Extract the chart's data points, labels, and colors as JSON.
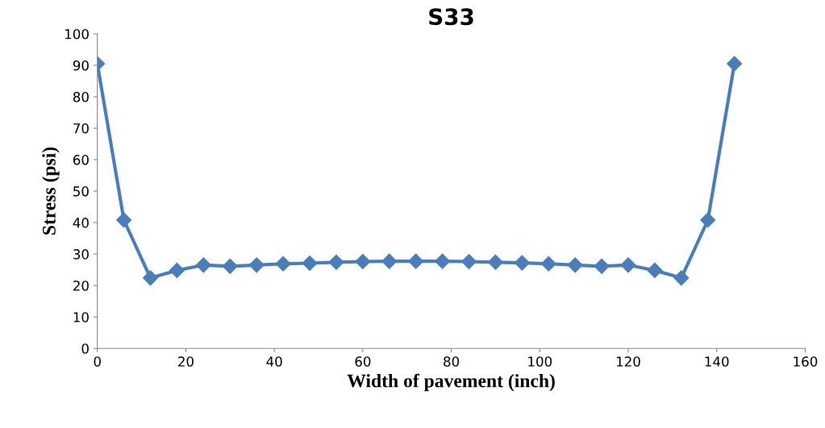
{
  "chart_data": {
    "type": "line",
    "title": "S33",
    "xlabel": "Width of pavement (inch)",
    "ylabel": "Stress (psi)",
    "x": [
      0,
      6,
      12,
      18,
      24,
      30,
      36,
      42,
      48,
      54,
      60,
      66,
      72,
      78,
      84,
      90,
      96,
      102,
      108,
      114,
      120,
      126,
      132,
      138,
      144
    ],
    "series": [
      {
        "color": "#4a7ebb",
        "values": [
          90.5,
          40.8,
          22.4,
          24.8,
          26.5,
          26.1,
          26.5,
          26.9,
          27.1,
          27.4,
          27.6,
          27.7,
          27.7,
          27.7,
          27.6,
          27.4,
          27.2,
          26.9,
          26.5,
          26.1,
          26.5,
          24.8,
          22.4,
          40.8,
          90.5
        ]
      }
    ],
    "xlim": [
      0,
      160
    ],
    "xticks": [
      0,
      20,
      40,
      60,
      80,
      100,
      120,
      140,
      160
    ],
    "ylim": [
      0,
      100
    ],
    "yticks": [
      0,
      10,
      20,
      30,
      40,
      50,
      60,
      70,
      80,
      90,
      100
    ],
    "marker": "diamond",
    "line_style": "solid",
    "grid": false,
    "legend": false
  }
}
